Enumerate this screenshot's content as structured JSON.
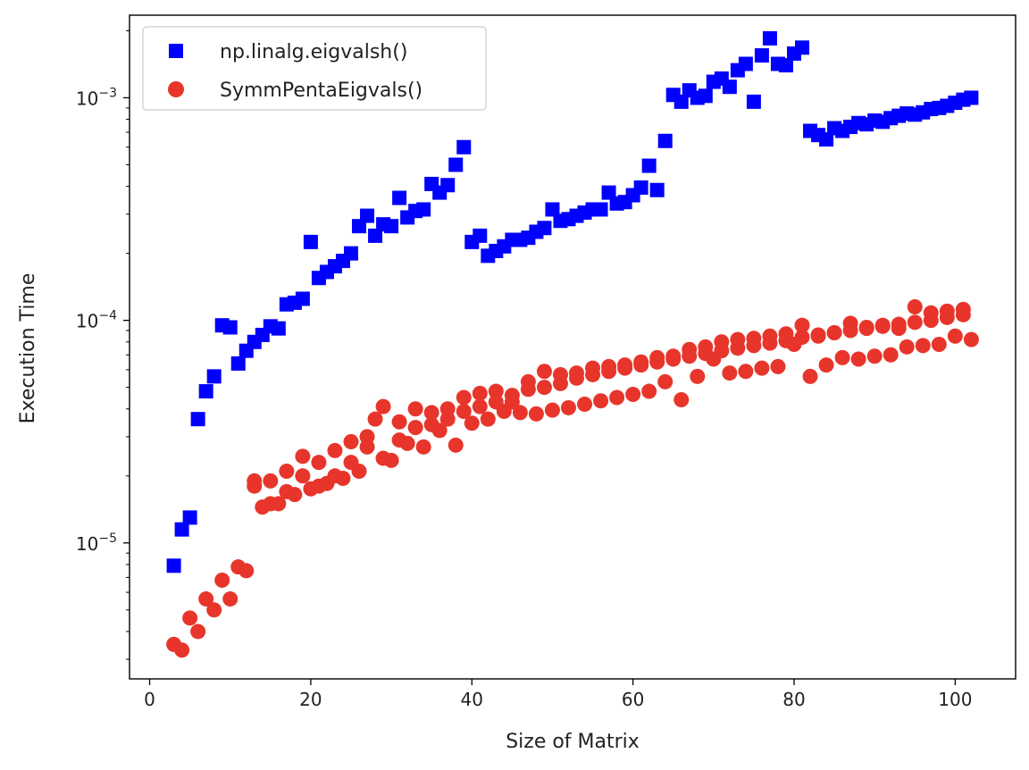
{
  "chart_data": {
    "type": "scatter",
    "title": "",
    "xlabel": "Size of Matrix",
    "ylabel": "Execution Time",
    "x_scale": "linear",
    "y_scale": "log",
    "xlim": [
      -2.5,
      107.5
    ],
    "ylim": [
      2.45e-06,
      0.00235
    ],
    "x_ticks": [
      0,
      20,
      40,
      60,
      80,
      100
    ],
    "x_tick_labels": [
      "0",
      "20",
      "40",
      "60",
      "80",
      "100"
    ],
    "y_ticks": [
      1e-05,
      0.0001,
      0.001
    ],
    "y_tick_labels": [
      {
        "base": "10",
        "exp": "−5"
      },
      {
        "base": "10",
        "exp": "−4"
      },
      {
        "base": "10",
        "exp": "−3"
      }
    ],
    "grid": false,
    "legend_position": "upper-left",
    "series": [
      {
        "name": "np.linalg.eigvalsh()",
        "marker": "square",
        "color": "#0000ff",
        "x": [
          3,
          4,
          5,
          6,
          7,
          8,
          9,
          10,
          11,
          12,
          13,
          14,
          15,
          16,
          17,
          18,
          19,
          20,
          21,
          22,
          23,
          24,
          25,
          26,
          27,
          28,
          29,
          30,
          31,
          32,
          33,
          34,
          35,
          36,
          37,
          38,
          39,
          40,
          41,
          42,
          43,
          44,
          45,
          46,
          47,
          48,
          49,
          50,
          51,
          52,
          53,
          54,
          55,
          56,
          57,
          58,
          59,
          60,
          61,
          62,
          63,
          64,
          65,
          66,
          67,
          68,
          69,
          70,
          71,
          72,
          73,
          74,
          75,
          76,
          77,
          78,
          79,
          80,
          81,
          82,
          83,
          84,
          85,
          86,
          87,
          88,
          89,
          90,
          91,
          92,
          93,
          94,
          95,
          96,
          97,
          98,
          99,
          100,
          101,
          102
        ],
        "y": [
          7.9e-06,
          1.15e-05,
          1.3e-05,
          3.6e-05,
          4.8e-05,
          5.6e-05,
          9.5e-05,
          9.3e-05,
          6.4e-05,
          7.3e-05,
          8e-05,
          8.6e-05,
          9.4e-05,
          9.2e-05,
          0.000118,
          0.00012,
          0.000125,
          0.000225,
          0.000155,
          0.000165,
          0.000175,
          0.000185,
          0.0002,
          0.000265,
          0.000295,
          0.00024,
          0.00027,
          0.000265,
          0.000355,
          0.00029,
          0.00031,
          0.000315,
          0.00041,
          0.000375,
          0.000405,
          0.0005,
          0.0006,
          0.000225,
          0.00024,
          0.000195,
          0.000205,
          0.000215,
          0.00023,
          0.00023,
          0.000235,
          0.00025,
          0.00026,
          0.000315,
          0.00028,
          0.000285,
          0.000295,
          0.000305,
          0.000315,
          0.000315,
          0.000375,
          0.000335,
          0.00034,
          0.000365,
          0.000395,
          0.000495,
          0.000385,
          0.00064,
          0.00103,
          0.00096,
          0.00108,
          0.001,
          0.00102,
          0.00118,
          0.00122,
          0.00112,
          0.00133,
          0.00142,
          0.00096,
          0.00155,
          0.00185,
          0.00142,
          0.0014,
          0.00158,
          0.00168,
          0.00071,
          0.00068,
          0.00065,
          0.00073,
          0.00071,
          0.00074,
          0.00077,
          0.00076,
          0.00079,
          0.00078,
          0.00081,
          0.00083,
          0.00085,
          0.00084,
          0.00086,
          0.00089,
          0.0009,
          0.00092,
          0.00095,
          0.00098,
          0.001
        ]
      },
      {
        "name": "SymmPentaEigvals()",
        "marker": "circle",
        "color": "#e8352b",
        "x": [
          3,
          4,
          5,
          6,
          7,
          8,
          9,
          10,
          11,
          12,
          13,
          14,
          15,
          16,
          17,
          18,
          19,
          20,
          21,
          22,
          23,
          24,
          25,
          26,
          27,
          28,
          29,
          30,
          31,
          32,
          33,
          34,
          35,
          36,
          37,
          38,
          39,
          40,
          41,
          42,
          43,
          44,
          45,
          46,
          47,
          48,
          49,
          50,
          51,
          52,
          53,
          54,
          55,
          56,
          57,
          58,
          59,
          60,
          61,
          62,
          63,
          64,
          65,
          66,
          67,
          68,
          69,
          70,
          71,
          72,
          73,
          74,
          75,
          76,
          77,
          78,
          79,
          80,
          81,
          82,
          83,
          84,
          85,
          86,
          87,
          88,
          89,
          90,
          91,
          92,
          93,
          94,
          95,
          96,
          97,
          98,
          99,
          100,
          101,
          102,
          13,
          15,
          17,
          19,
          21,
          23,
          25,
          27,
          29,
          31,
          33,
          35,
          37,
          39,
          41,
          43,
          45,
          47,
          49,
          51,
          53,
          55,
          57,
          59,
          61,
          63,
          65,
          67,
          69,
          71,
          73,
          75,
          77,
          79,
          81,
          83,
          85,
          87,
          89,
          91,
          93,
          95,
          97,
          99,
          101
        ],
        "y": [
          3.5e-06,
          3.3e-06,
          4.6e-06,
          4e-06,
          5.6e-06,
          5e-06,
          6.8e-06,
          5.6e-06,
          7.8e-06,
          7.5e-06,
          1.8e-05,
          1.45e-05,
          1.9e-05,
          1.5e-05,
          2.1e-05,
          1.65e-05,
          2.45e-05,
          1.75e-05,
          2.3e-05,
          1.85e-05,
          2.6e-05,
          1.95e-05,
          2.85e-05,
          2.1e-05,
          3e-05,
          3.6e-05,
          4.1e-05,
          2.35e-05,
          3.5e-05,
          2.8e-05,
          4e-05,
          2.7e-05,
          3.85e-05,
          3.2e-05,
          4e-05,
          2.75e-05,
          4.5e-05,
          3.45e-05,
          4.7e-05,
          3.6e-05,
          4.8e-05,
          3.9e-05,
          4.3e-05,
          3.85e-05,
          5.3e-05,
          3.8e-05,
          5.9e-05,
          3.95e-05,
          5.7e-05,
          4.05e-05,
          5.8e-05,
          4.2e-05,
          6.1e-05,
          4.35e-05,
          6.2e-05,
          4.5e-05,
          6.3e-05,
          4.65e-05,
          6.5e-05,
          4.8e-05,
          6.8e-05,
          5.3e-05,
          6.9e-05,
          4.4e-05,
          7.4e-05,
          5.6e-05,
          7.6e-05,
          6.7e-05,
          8e-05,
          5.8e-05,
          8.2e-05,
          5.9e-05,
          8.3e-05,
          6.1e-05,
          8.5e-05,
          6.2e-05,
          8.7e-05,
          7.8e-05,
          9.5e-05,
          5.6e-05,
          8.5e-05,
          6.3e-05,
          8.8e-05,
          6.8e-05,
          9.7e-05,
          6.7e-05,
          9.3e-05,
          6.9e-05,
          9.5e-05,
          7e-05,
          9.2e-05,
          7.6e-05,
          0.000115,
          7.7e-05,
          0.000108,
          7.8e-05,
          0.00011,
          8.5e-05,
          0.000112,
          8.2e-05,
          1.9e-05,
          1.5e-05,
          1.7e-05,
          2e-05,
          1.8e-05,
          2e-05,
          2.3e-05,
          2.7e-05,
          2.4e-05,
          2.9e-05,
          3.3e-05,
          3.4e-05,
          3.6e-05,
          3.9e-05,
          4.1e-05,
          4.3e-05,
          4.6e-05,
          4.9e-05,
          5e-05,
          5.2e-05,
          5.5e-05,
          5.7e-05,
          5.9e-05,
          6.1e-05,
          6.3e-05,
          6.5e-05,
          6.7e-05,
          6.9e-05,
          7.1e-05,
          7.3e-05,
          7.5e-05,
          7.7e-05,
          7.9e-05,
          8.1e-05,
          8.4e-05,
          8.6e-05,
          8.8e-05,
          9e-05,
          9.2e-05,
          9.4e-05,
          9.6e-05,
          9.8e-05,
          0.0001,
          0.000103,
          0.000106
        ]
      }
    ]
  }
}
